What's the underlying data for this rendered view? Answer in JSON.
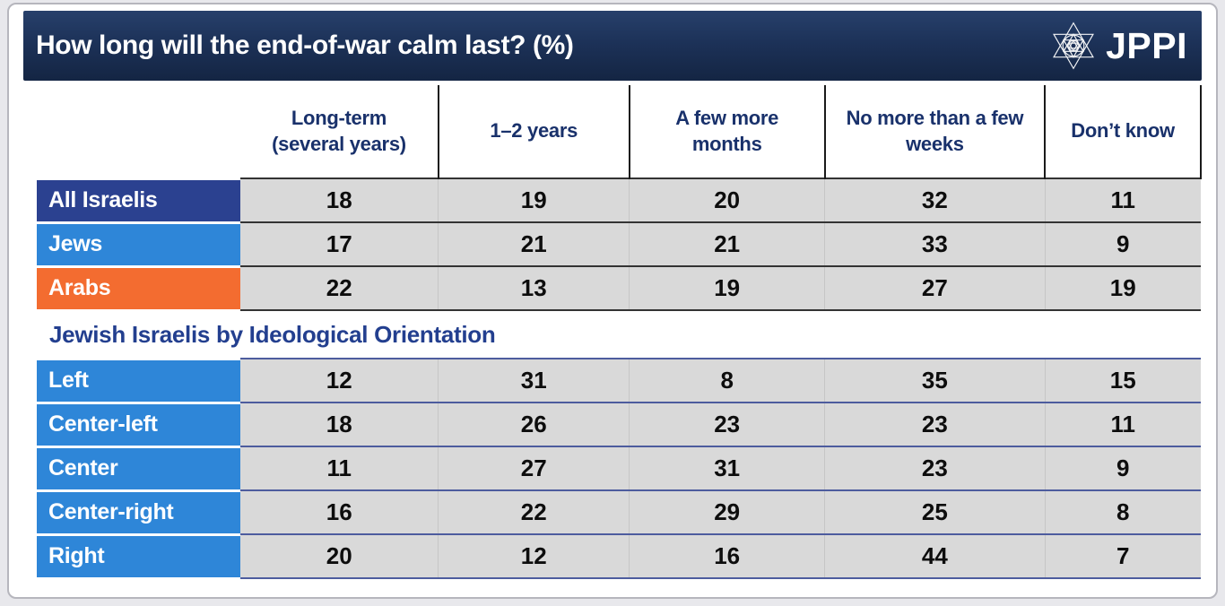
{
  "page": {
    "title_bar": {
      "title": "How long will the end-of-war calm last? (%)",
      "logo": {
        "text": "JPPI",
        "icon": "star-of-david-emblem"
      }
    },
    "colors": {
      "page_bg": "#e8e8ec",
      "card_bg": "#ffffff",
      "card_border": "#b6b6bd",
      "title_bar_navy_top": "#27406b",
      "title_bar_navy_bottom": "#142543",
      "title_text": "#ffffff",
      "column_header_text": "#19316b",
      "section_title_text": "#233f8f",
      "cell_bg": "#d9d9d9",
      "cell_text": "#0d0d0d",
      "row_label_text": "#ffffff",
      "all_israelis_label_bg": "#2b4190",
      "blue_label_bg": "#2e86d8",
      "arabs_label_bg": "#f36c30",
      "top_section_row_border": "#333333",
      "ideology_row_border": "#4d5c9e",
      "header_divider": "#1a1a1a"
    }
  },
  "chart_data": {
    "type": "table",
    "title": "How long will the end-of-war calm last? (%)",
    "columns": [
      "Long-term (several years)",
      "1–2 years",
      "A few more months",
      "No more than a few weeks",
      "Don’t know"
    ],
    "sections": [
      {
        "rows": [
          {
            "label": "All Israelis",
            "label_bg": "#2b4190",
            "values": [
              18,
              19,
              20,
              32,
              11
            ]
          },
          {
            "label": "Jews",
            "label_bg": "#2e86d8",
            "values": [
              17,
              21,
              21,
              33,
              9
            ]
          },
          {
            "label": "Arabs",
            "label_bg": "#f36c30",
            "values": [
              22,
              13,
              19,
              27,
              19
            ]
          }
        ]
      },
      {
        "section_title": "Jewish Israelis by Ideological Orientation",
        "rows": [
          {
            "label": "Left",
            "label_bg": "#2e86d8",
            "values": [
              12,
              31,
              8,
              35,
              15
            ]
          },
          {
            "label": "Center-left",
            "label_bg": "#2e86d8",
            "values": [
              18,
              26,
              23,
              23,
              11
            ]
          },
          {
            "label": "Center",
            "label_bg": "#2e86d8",
            "values": [
              11,
              27,
              31,
              23,
              9
            ]
          },
          {
            "label": "Center-right",
            "label_bg": "#2e86d8",
            "values": [
              16,
              22,
              29,
              25,
              8
            ]
          },
          {
            "label": "Right",
            "label_bg": "#2e86d8",
            "values": [
              20,
              12,
              16,
              44,
              7
            ]
          }
        ]
      }
    ]
  }
}
